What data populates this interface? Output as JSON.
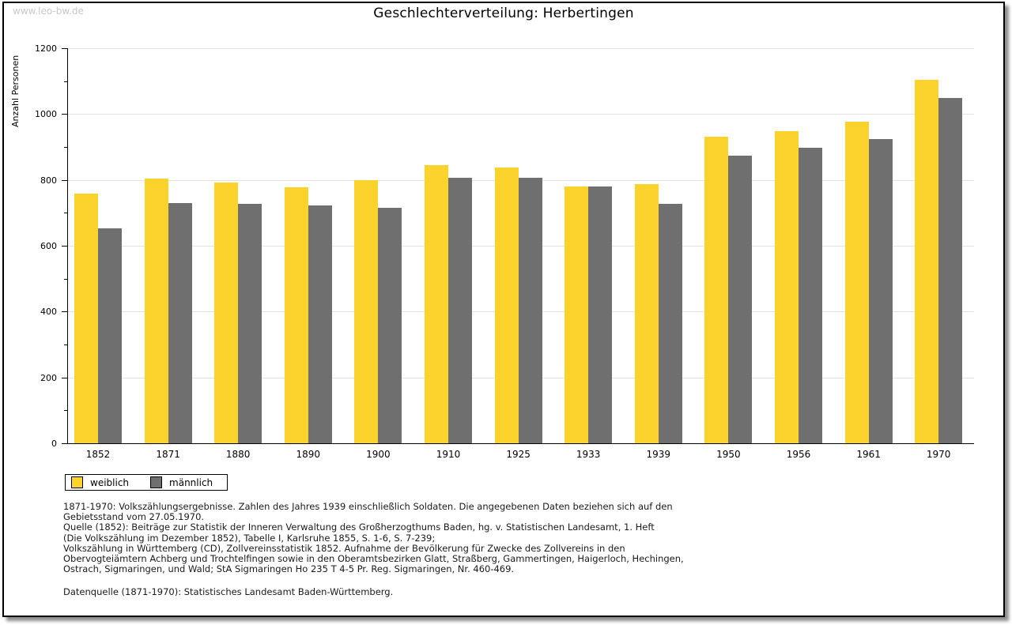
{
  "watermark": "www.leo-bw.de",
  "title": "Geschlechterverteilung: Herbertingen",
  "chart_data": {
    "type": "bar",
    "title": "Geschlechterverteilung: Herbertingen",
    "xlabel": "",
    "ylabel": "Anzahl Personen",
    "ylim": [
      0,
      1200
    ],
    "ytick_major": [
      0,
      200,
      400,
      600,
      800,
      1000,
      1200
    ],
    "ytick_minor": [
      100,
      300,
      500,
      700,
      900,
      1100
    ],
    "grid": true,
    "legend_position": "bottom-left",
    "categories": [
      "1852",
      "1871",
      "1880",
      "1890",
      "1900",
      "1910",
      "1925",
      "1933",
      "1939",
      "1950",
      "1956",
      "1961",
      "1970"
    ],
    "series": [
      {
        "name": "weiblich",
        "color": "#FCD32D",
        "values": [
          758,
          805,
          791,
          777,
          799,
          845,
          837,
          780,
          788,
          932,
          947,
          977,
          1103
        ]
      },
      {
        "name": "männlich",
        "color": "#6F6F6F",
        "values": [
          652,
          730,
          728,
          722,
          716,
          807,
          807,
          781,
          728,
          873,
          897,
          924,
          1049
        ]
      }
    ]
  },
  "colors": {
    "female_bar": "#FCD32D",
    "male_bar": "#6F6F6F",
    "gridline": "#E2E2E2",
    "axis": "#000000",
    "watermark": "#C9C9C9"
  },
  "footnote": {
    "lines": [
      "1871-1970: Volkszählungsergebnisse. Zahlen des Jahres 1939 einschließlich Soldaten. Die angegebenen Daten beziehen sich auf den",
      "Gebietsstand vom 27.05.1970.",
      "Quelle (1852): Beiträge zur Statistik der Inneren Verwaltung des Großherzogthums Baden, hg. v. Statistischen Landesamt, 1. Heft",
      "(Die Volkszählung im Dezember 1852), Tabelle I, Karlsruhe 1855, S. 1-6, S. 7-239;",
      "Volkszählung in Württemberg (CD), Zollvereinsstatistik 1852. Aufnahme der Bevölkerung für Zwecke des Zollvereins in den",
      "Obervogteiämtern Achberg und Trochtelfingen sowie in den Oberamtsbezirken Glatt, Straßberg, Gammertingen, Haigerloch, Hechingen,",
      "Ostrach, Sigmaringen, und Wald; StA Sigmaringen Ho 235 T 4-5 Pr. Reg. Sigmaringen, Nr. 460-469."
    ],
    "datasource": "Datenquelle (1871-1970): Statistisches Landesamt Baden-Württemberg."
  }
}
